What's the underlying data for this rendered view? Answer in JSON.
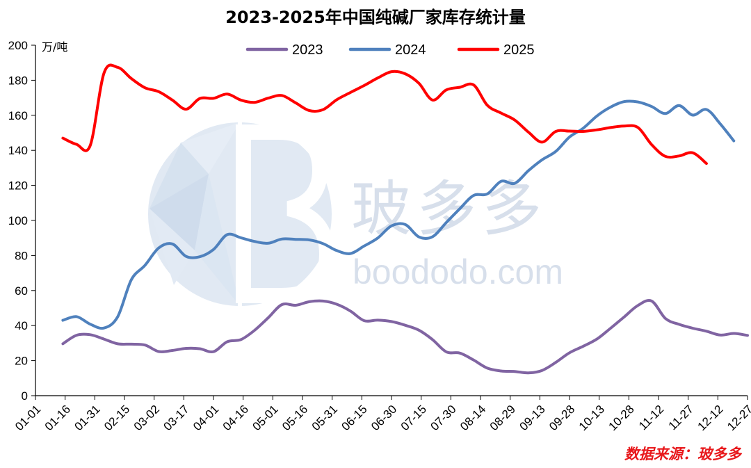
{
  "chart_data": {
    "type": "line",
    "title": "2023-2025年中国纯碱厂家库存统计量",
    "unit_label": "万/吨",
    "source_note": "数据来源：玻多多",
    "watermark": {
      "text": "玻多多",
      "url": "boododo.com"
    },
    "ylim": [
      0,
      200
    ],
    "yticks": [
      0,
      20,
      40,
      60,
      80,
      100,
      120,
      140,
      160,
      180,
      200
    ],
    "x_tick_labels": [
      "01-01",
      "01-16",
      "01-31",
      "02-15",
      "03-02",
      "03-17",
      "04-01",
      "04-16",
      "05-01",
      "05-16",
      "05-31",
      "06-15",
      "06-30",
      "07-15",
      "07-30",
      "08-14",
      "08-29",
      "09-13",
      "09-28",
      "10-13",
      "10-28",
      "11-12",
      "11-27",
      "12-12",
      "12-27"
    ],
    "x_unit": "day_of_year",
    "x_range": [
      1,
      365
    ],
    "legend_position": "top-center",
    "grid": false,
    "series": [
      {
        "name": "2023",
        "color": "#8064a2",
        "x": [
          15,
          22,
          29,
          36,
          43,
          50,
          57,
          64,
          71,
          78,
          85,
          92,
          99,
          106,
          113,
          120,
          127,
          134,
          141,
          148,
          155,
          162,
          169,
          176,
          183,
          190,
          197,
          204,
          211,
          218,
          225,
          232,
          239,
          246,
          253,
          260,
          267,
          274,
          281,
          288,
          295,
          302,
          309,
          316,
          323,
          330,
          337,
          344,
          351,
          358,
          365
        ],
        "values": [
          29.6,
          34.5,
          34.8,
          32.3,
          29.6,
          29.4,
          28.9,
          25.2,
          25.8,
          27.0,
          26.8,
          25.1,
          30.8,
          32.0,
          37.3,
          44.5,
          52.0,
          51.6,
          53.6,
          54.0,
          52.2,
          48.3,
          42.8,
          43.1,
          42.3,
          40.2,
          37.4,
          32.0,
          25.0,
          24.3,
          20.3,
          15.7,
          14.1,
          13.8,
          13.0,
          14.4,
          19.0,
          24.5,
          28.2,
          32.3,
          38.5,
          45.0,
          51.5,
          54.0,
          44.1,
          40.7,
          38.5,
          36.8,
          34.6,
          35.5,
          34.4
        ]
      },
      {
        "name": "2024",
        "color": "#4f81bd",
        "x": [
          15,
          22,
          29,
          36,
          43,
          50,
          57,
          64,
          71,
          78,
          85,
          92,
          99,
          106,
          113,
          120,
          127,
          134,
          141,
          148,
          155,
          162,
          169,
          176,
          183,
          190,
          197,
          204,
          211,
          218,
          225,
          232,
          239,
          246,
          253,
          260,
          267,
          274,
          281,
          288,
          295,
          302,
          309,
          316,
          323,
          330,
          337,
          344,
          351,
          358
        ],
        "values": [
          43.0,
          45.1,
          40.8,
          38.6,
          45.0,
          66.1,
          74.4,
          84.3,
          86.6,
          79.5,
          79.3,
          83.4,
          91.9,
          90.1,
          88.0,
          87.0,
          89.4,
          89.2,
          88.9,
          86.8,
          82.8,
          81.1,
          85.4,
          90.0,
          96.9,
          97.7,
          90.6,
          90.7,
          98.8,
          106.8,
          114.3,
          115.1,
          122.3,
          121.2,
          128.4,
          134.6,
          139.4,
          147.6,
          152.6,
          159.6,
          164.7,
          167.8,
          167.6,
          165.0,
          161.0,
          165.6,
          160.1,
          163.3,
          155.2,
          145.4
        ]
      },
      {
        "name": "2025",
        "color": "#ff0000",
        "x": [
          15,
          22,
          29,
          36,
          43,
          50,
          57,
          64,
          71,
          78,
          85,
          92,
          99,
          106,
          113,
          120,
          127,
          134,
          141,
          148,
          155,
          162,
          169,
          176,
          183,
          190,
          197,
          204,
          211,
          218,
          225,
          232,
          239,
          246,
          253,
          260,
          267,
          274,
          281,
          288,
          295,
          302,
          309,
          316,
          323,
          330,
          337,
          344
        ],
        "values": [
          147.0,
          143.4,
          142.8,
          184.0,
          187.4,
          181.0,
          175.7,
          173.5,
          168.7,
          163.5,
          169.6,
          169.7,
          172.1,
          168.7,
          167.4,
          169.8,
          171.3,
          167.1,
          162.7,
          163.2,
          168.9,
          173.0,
          177.0,
          181.3,
          184.9,
          183.7,
          178.3,
          168.7,
          174.5,
          176.0,
          177.3,
          165.7,
          161.3,
          157.3,
          150.4,
          144.7,
          150.8,
          151.0,
          150.8,
          151.7,
          153.0,
          153.9,
          153.0,
          143.2,
          136.6,
          136.8,
          138.6,
          132.5
        ]
      }
    ]
  }
}
